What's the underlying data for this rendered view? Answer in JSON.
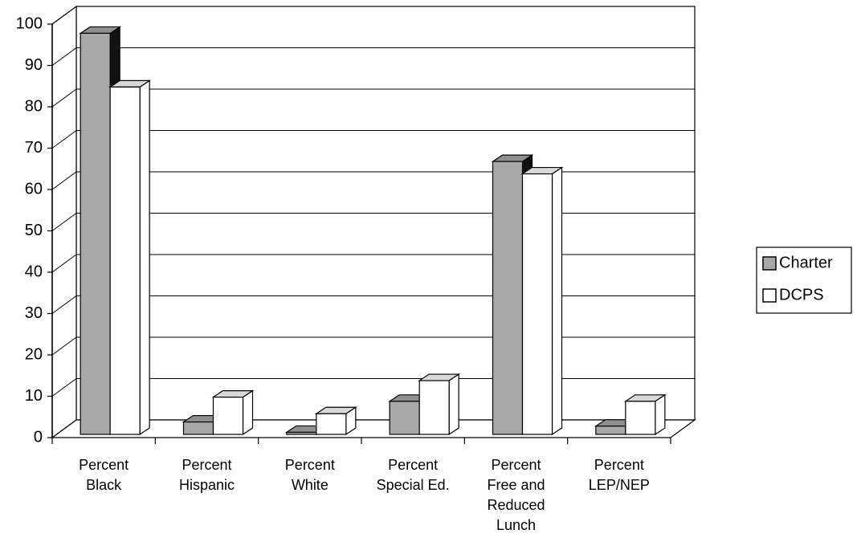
{
  "chart_data": {
    "type": "bar3d",
    "categories": [
      "Percent\nBlack",
      "Percent\nHispanic",
      "Percent\nWhite",
      "Percent\nSpecial Ed.",
      "Percent\nFree and\nReduced\nLunch",
      "Percent\nLEP/NEP"
    ],
    "series": [
      {
        "name": "Charter",
        "color": "#a8a8a8",
        "values": [
          97,
          3,
          0.5,
          8,
          66,
          2
        ]
      },
      {
        "name": "DCPS",
        "color": "#ffffff",
        "values": [
          84,
          9,
          5,
          13,
          63,
          8
        ]
      }
    ],
    "ylim": [
      0,
      100
    ],
    "yticks": [
      0,
      10,
      20,
      30,
      40,
      50,
      60,
      70,
      80,
      90,
      100
    ],
    "grid": true,
    "legend": "right"
  }
}
